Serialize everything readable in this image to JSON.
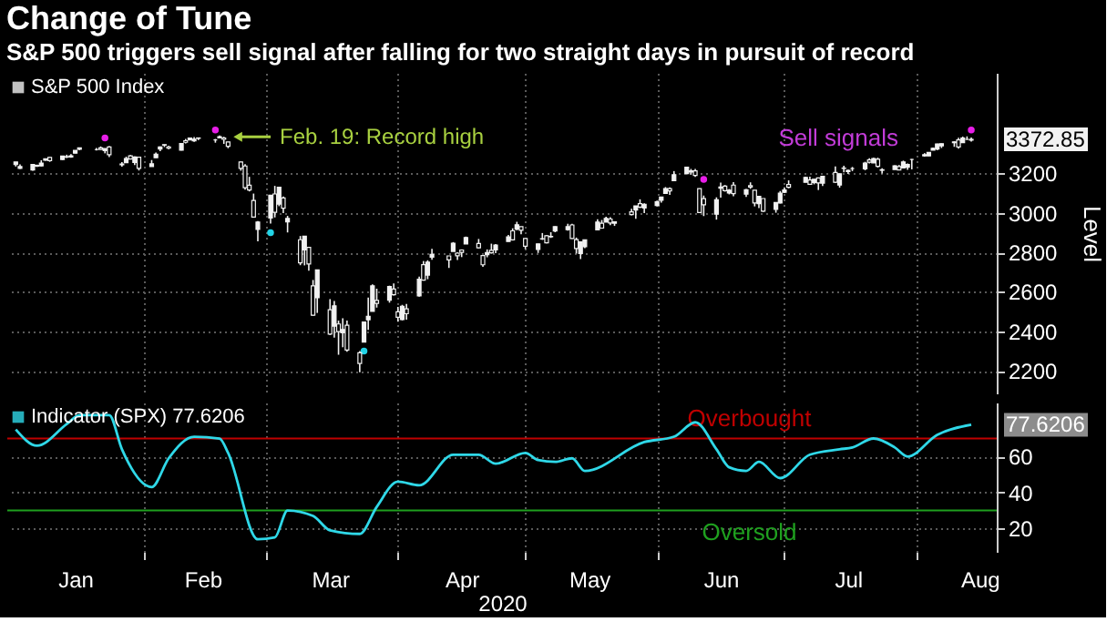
{
  "chart_data": [
    {
      "type": "candlestick",
      "title": "Change of Tune",
      "subtitle": "S&P 500 triggers sell signal after falling for two straight days in pursuit of record",
      "ylabel": "Level",
      "xlim": [
        "2019-12-31",
        "2020-08-20"
      ],
      "ylim": [
        2085,
        3710
      ],
      "yticks": [
        2200,
        2400,
        2600,
        2800,
        3000,
        3200
      ],
      "xticks": [
        {
          "value": "2020-02-01",
          "label": null
        },
        {
          "value": "2020-03-01",
          "label": null
        },
        {
          "value": "2020-04-01",
          "label": null
        },
        {
          "value": "2020-05-01",
          "label": null
        },
        {
          "value": "2020-06-01",
          "label": null
        },
        {
          "value": "2020-07-01",
          "label": null
        },
        {
          "value": "2020-08-01",
          "label": null
        }
      ],
      "tick_labels": "y",
      "grid": true,
      "legend": "top left",
      "series": [
        {
          "name": "S&P 500 Index",
          "type": "candlestick",
          "color": "#f2f2f2",
          "x": [
            "2020-01-02",
            "2020-01-03",
            "2020-01-06",
            "2020-01-07",
            "2020-01-08",
            "2020-01-09",
            "2020-01-10",
            "2020-01-13",
            "2020-01-14",
            "2020-01-15",
            "2020-01-16",
            "2020-01-17",
            "2020-01-21",
            "2020-01-22",
            "2020-01-23",
            "2020-01-24",
            "2020-01-27",
            "2020-01-28",
            "2020-01-29",
            "2020-01-30",
            "2020-01-31",
            "2020-02-03",
            "2020-02-04",
            "2020-02-05",
            "2020-02-06",
            "2020-02-07",
            "2020-02-10",
            "2020-02-11",
            "2020-02-12",
            "2020-02-13",
            "2020-02-14",
            "2020-02-18",
            "2020-02-19",
            "2020-02-20",
            "2020-02-21",
            "2020-02-24",
            "2020-02-25",
            "2020-02-26",
            "2020-02-27",
            "2020-02-28",
            "2020-03-02",
            "2020-03-03",
            "2020-03-04",
            "2020-03-05",
            "2020-03-06",
            "2020-03-09",
            "2020-03-10",
            "2020-03-11",
            "2020-03-12",
            "2020-03-13",
            "2020-03-16",
            "2020-03-17",
            "2020-03-18",
            "2020-03-19",
            "2020-03-20",
            "2020-03-23",
            "2020-03-24",
            "2020-03-25",
            "2020-03-26",
            "2020-03-27",
            "2020-03-30",
            "2020-03-31",
            "2020-04-01",
            "2020-04-02",
            "2020-04-03",
            "2020-04-06",
            "2020-04-07",
            "2020-04-08",
            "2020-04-09",
            "2020-04-13",
            "2020-04-14",
            "2020-04-15",
            "2020-04-16",
            "2020-04-17",
            "2020-04-20",
            "2020-04-21",
            "2020-04-22",
            "2020-04-23",
            "2020-04-24",
            "2020-04-27",
            "2020-04-28",
            "2020-04-29",
            "2020-04-30",
            "2020-05-01",
            "2020-05-04",
            "2020-05-05",
            "2020-05-06",
            "2020-05-07",
            "2020-05-08",
            "2020-05-11",
            "2020-05-12",
            "2020-05-13",
            "2020-05-14",
            "2020-05-15",
            "2020-05-18",
            "2020-05-19",
            "2020-05-20",
            "2020-05-21",
            "2020-05-22",
            "2020-05-26",
            "2020-05-27",
            "2020-05-28",
            "2020-05-29",
            "2020-06-01",
            "2020-06-02",
            "2020-06-03",
            "2020-06-04",
            "2020-06-05",
            "2020-06-08",
            "2020-06-09",
            "2020-06-10",
            "2020-06-11",
            "2020-06-12",
            "2020-06-15",
            "2020-06-16",
            "2020-06-17",
            "2020-06-18",
            "2020-06-19",
            "2020-06-22",
            "2020-06-23",
            "2020-06-24",
            "2020-06-25",
            "2020-06-26",
            "2020-06-29",
            "2020-06-30",
            "2020-07-01",
            "2020-07-02",
            "2020-07-06",
            "2020-07-07",
            "2020-07-08",
            "2020-07-09",
            "2020-07-10",
            "2020-07-13",
            "2020-07-14",
            "2020-07-15",
            "2020-07-16",
            "2020-07-17",
            "2020-07-20",
            "2020-07-21",
            "2020-07-22",
            "2020-07-23",
            "2020-07-24",
            "2020-07-27",
            "2020-07-28",
            "2020-07-29",
            "2020-07-30",
            "2020-07-31",
            "2020-08-03",
            "2020-08-04",
            "2020-08-05",
            "2020-08-06",
            "2020-08-07",
            "2020-08-10",
            "2020-08-11",
            "2020-08-12",
            "2020-08-13",
            "2020-08-14"
          ],
          "value_labels": [
            null,
            null,
            null,
            null,
            null,
            null,
            null,
            null,
            null,
            null,
            null,
            null,
            null,
            null,
            null,
            null,
            null,
            null,
            null,
            null,
            null,
            null,
            null,
            null,
            null,
            null,
            null,
            null,
            null,
            null,
            null,
            null,
            null,
            null,
            null,
            null,
            null,
            null,
            null,
            null,
            null,
            null,
            null,
            null,
            null,
            null,
            null,
            null,
            null,
            null,
            null,
            null,
            null,
            null,
            null,
            null,
            null,
            null,
            null,
            null,
            null,
            null,
            null,
            null,
            null,
            null,
            null,
            null,
            null,
            null,
            null,
            null,
            null,
            null,
            null,
            null,
            null,
            null,
            null,
            null,
            null,
            null,
            null,
            null,
            null,
            null,
            null,
            null,
            null,
            null,
            null,
            null,
            null,
            null,
            null,
            null,
            null,
            null,
            null,
            null,
            null,
            null,
            null,
            null,
            null,
            null,
            null,
            null,
            null,
            null,
            null,
            null,
            null,
            null,
            null,
            null,
            null,
            null,
            null,
            null,
            null,
            null,
            null,
            null,
            null,
            null,
            null,
            null,
            null,
            null,
            null,
            null,
            null,
            null,
            null,
            null,
            null,
            null,
            null,
            null,
            null,
            null,
            null,
            null,
            null,
            null,
            null,
            null,
            null,
            null,
            null,
            null,
            null,
            null,
            null,
            null,
            "3372.85"
          ],
          "ohlc": [
            [
              3245,
              3258,
              3235,
              3258
            ],
            [
              3226,
              3246,
              3223,
              3235
            ],
            [
              3218,
              3247,
              3214,
              3246
            ],
            [
              3241,
              3245,
              3233,
              3237
            ],
            [
              3238,
              3267,
              3236,
              3253
            ],
            [
              3267,
              3275,
              3264,
              3275
            ],
            [
              3281,
              3283,
              3259,
              3265
            ],
            [
              3271,
              3288,
              3268,
              3288
            ],
            [
              3285,
              3295,
              3278,
              3283
            ],
            [
              3283,
              3298,
              3280,
              3289
            ],
            [
              3303,
              3317,
              3302,
              3317
            ],
            [
              3323,
              3330,
              3318,
              3330
            ],
            [
              3321,
              3329,
              3316,
              3321
            ],
            [
              3330,
              3337,
              3321,
              3322
            ],
            [
              3316,
              3326,
              3302,
              3326
            ],
            [
              3334,
              3338,
              3283,
              3295
            ],
            [
              3248,
              3258,
              3235,
              3244
            ],
            [
              3255,
              3285,
              3253,
              3276
            ],
            [
              3289,
              3293,
              3272,
              3273
            ],
            [
              3256,
              3286,
              3243,
              3284
            ],
            [
              3282,
              3282,
              3215,
              3226
            ],
            [
              3235,
              3268,
              3235,
              3249
            ],
            [
              3280,
              3306,
              3280,
              3298
            ],
            [
              3324,
              3337,
              3313,
              3335
            ],
            [
              3344,
              3347,
              3334,
              3346
            ],
            [
              3335,
              3341,
              3322,
              3328
            ],
            [
              3318,
              3352,
              3317,
              3352
            ],
            [
              3366,
              3375,
              3352,
              3358
            ],
            [
              3370,
              3381,
              3369,
              3379
            ],
            [
              3365,
              3385,
              3360,
              3374
            ],
            [
              3378,
              3381,
              3369,
              3380
            ],
            [
              3370,
              3375,
              3356,
              3370
            ],
            [
              3380,
              3393,
              3378,
              3386
            ],
            [
              3380,
              3386,
              3350,
              3373
            ],
            [
              3360,
              3360,
              3328,
              3338
            ],
            [
              3258,
              3260,
              3214,
              3226
            ],
            [
              3238,
              3247,
              3118,
              3128
            ],
            [
              3140,
              3183,
              3109,
              3116
            ],
            [
              3063,
              3098,
              2977,
              2979
            ],
            [
              2916,
              2959,
              2856,
              2954
            ],
            [
              2974,
              3090,
              2946,
              3090
            ],
            [
              3096,
              3137,
              2977,
              3003
            ],
            [
              3045,
              3130,
              3034,
              3130
            ],
            [
              3076,
              3083,
              2999,
              3024
            ],
            [
              2954,
              2985,
              2901,
              2972
            ],
            [
              2864,
              2883,
              2735,
              2747
            ],
            [
              2813,
              2882,
              2734,
              2882
            ],
            [
              2825,
              2825,
              2707,
              2741
            ],
            [
              2630,
              2660,
              2478,
              2481
            ],
            [
              2570,
              2711,
              2493,
              2711
            ],
            [
              2509,
              2563,
              2381,
              2386
            ],
            [
              2426,
              2553,
              2368,
              2529
            ],
            [
              2437,
              2454,
              2281,
              2398
            ],
            [
              2393,
              2466,
              2319,
              2409
            ],
            [
              2431,
              2454,
              2296,
              2305
            ],
            [
              2291,
              2300,
              2192,
              2237
            ],
            [
              2345,
              2449,
              2345,
              2447
            ],
            [
              2458,
              2571,
              2407,
              2476
            ],
            [
              2501,
              2638,
              2501,
              2630
            ],
            [
              2556,
              2616,
              2520,
              2541
            ],
            [
              2558,
              2631,
              2545,
              2627
            ],
            [
              2614,
              2642,
              2581,
              2585
            ],
            [
              2499,
              2523,
              2448,
              2471
            ],
            [
              2459,
              2534,
              2455,
              2527
            ],
            [
              2514,
              2538,
              2459,
              2489
            ],
            [
              2579,
              2677,
              2575,
              2664
            ],
            [
              2738,
              2756,
              2657,
              2659
            ],
            [
              2685,
              2760,
              2664,
              2750
            ],
            [
              2776,
              2818,
              2762,
              2790
            ],
            [
              2782,
              2782,
              2721,
              2762
            ],
            [
              2805,
              2852,
              2805,
              2846
            ],
            [
              2796,
              2801,
              2761,
              2783
            ],
            [
              2812,
              2815,
              2776,
              2800
            ],
            [
              2843,
              2880,
              2843,
              2875
            ],
            [
              2845,
              2868,
              2820,
              2823
            ],
            [
              2784,
              2785,
              2727,
              2737
            ],
            [
              2788,
              2815,
              2775,
              2799
            ],
            [
              2810,
              2844,
              2794,
              2798
            ],
            [
              2813,
              2842,
              2796,
              2837
            ],
            [
              2855,
              2888,
              2855,
              2878
            ],
            [
              2909,
              2922,
              2860,
              2863
            ],
            [
              2918,
              2955,
              2912,
              2940
            ],
            [
              2930,
              2930,
              2892,
              2912
            ],
            [
              2870,
              2870,
              2817,
              2831
            ],
            [
              2815,
              2844,
              2797,
              2843
            ],
            [
              2869,
              2898,
              2863,
              2868
            ],
            [
              2884,
              2887,
              2845,
              2848
            ],
            [
              2879,
              2902,
              2873,
              2881
            ],
            [
              2908,
              2932,
              2902,
              2930
            ],
            [
              2915,
              2945,
              2910,
              2930
            ],
            [
              2939,
              2945,
              2869,
              2870
            ],
            [
              2865,
              2875,
              2794,
              2820
            ],
            [
              2794,
              2853,
              2766,
              2853
            ],
            [
              2829,
              2865,
              2821,
              2864
            ],
            [
              2914,
              2968,
              2914,
              2954
            ],
            [
              2948,
              2964,
              2922,
              2923
            ],
            [
              2953,
              2981,
              2953,
              2972
            ],
            [
              2969,
              2978,
              2938,
              2949
            ],
            [
              2948,
              2957,
              2934,
              2955
            ],
            [
              3005,
              3021,
              2988,
              2992
            ],
            [
              3015,
              3036,
              2970,
              3036
            ],
            [
              3047,
              3069,
              3024,
              3030
            ],
            [
              3025,
              3049,
              2999,
              3044
            ],
            [
              3038,
              3063,
              3032,
              3056
            ],
            [
              3064,
              3081,
              3052,
              3081
            ],
            [
              3099,
              3131,
              3097,
              3123
            ],
            [
              3123,
              3129,
              3091,
              3112
            ],
            [
              3163,
              3212,
              3163,
              3194
            ],
            [
              3199,
              3233,
              3196,
              3232
            ],
            [
              3213,
              3223,
              3194,
              3207
            ],
            [
              3213,
              3223,
              3182,
              3190
            ],
            [
              3123,
              3124,
              2999,
              3002
            ],
            [
              3072,
              3088,
              2984,
              3041
            ],
            [
              2994,
              3079,
              2966,
              3067
            ],
            [
              3131,
              3154,
              3077,
              3125
            ],
            [
              3136,
              3141,
              3108,
              3113
            ],
            [
              3101,
              3121,
              3094,
              3115
            ],
            [
              3141,
              3156,
              3084,
              3098
            ],
            [
              3095,
              3121,
              3081,
              3118
            ],
            [
              3138,
              3155,
              3122,
              3131
            ],
            [
              3115,
              3115,
              3033,
              3050
            ],
            [
              3047,
              3086,
              3025,
              3084
            ],
            [
              3073,
              3073,
              3005,
              3009
            ],
            [
              3018,
              3054,
              3001,
              3053
            ],
            [
              3050,
              3111,
              3048,
              3100
            ],
            [
              3105,
              3129,
              3101,
              3116
            ],
            [
              3144,
              3165,
              3125,
              3130
            ],
            [
              3155,
              3183,
              3155,
              3180
            ],
            [
              3167,
              3184,
              3142,
              3145
            ],
            [
              3154,
              3172,
              3145,
              3170
            ],
            [
              3177,
              3179,
              3116,
              3152
            ],
            [
              3151,
              3187,
              3136,
              3185
            ],
            [
              3205,
              3236,
              3151,
              3155
            ],
            [
              3141,
              3200,
              3128,
              3198
            ],
            [
              3226,
              3239,
              3206,
              3227
            ],
            [
              3209,
              3220,
              3198,
              3216
            ],
            [
              3225,
              3233,
              3212,
              3225
            ],
            [
              3224,
              3259,
              3216,
              3252
            ],
            [
              3269,
              3277,
              3251,
              3257
            ],
            [
              3254,
              3279,
              3253,
              3276
            ],
            [
              3272,
              3280,
              3230,
              3236
            ],
            [
              3219,
              3227,
              3200,
              3216
            ],
            [
              3220,
              3241,
              3220,
              3239
            ],
            [
              3235,
              3243,
              3216,
              3218
            ],
            [
              3228,
              3265,
              3228,
              3258
            ],
            [
              3232,
              3251,
              3218,
              3246
            ],
            [
              3271,
              3273,
              3221,
              3271
            ],
            [
              3289,
              3303,
              3285,
              3295
            ],
            [
              3289,
              3307,
              3288,
              3307
            ],
            [
              3318,
              3331,
              3318,
              3328
            ],
            [
              3324,
              3351,
              3318,
              3349
            ],
            [
              3340,
              3352,
              3329,
              3351
            ],
            [
              3356,
              3363,
              3335,
              3360
            ],
            [
              3370,
              3381,
              3326,
              3334
            ],
            [
              3356,
              3387,
              3355,
              3380
            ],
            [
              3373,
              3388,
              3370,
              3373
            ],
            [
              3369,
              3382,
              3362,
              3372.85
            ]
          ]
        },
        {
          "type": "scatter",
          "color": "#e81ee8",
          "x": [
            "2020-01-23",
            "2020-02-18",
            "2020-06-12",
            "2020-08-14"
          ],
          "values": [
            3380,
            3420,
            3170,
            3420
          ]
        },
        {
          "type": "scatter",
          "color": "#22d3e6",
          "x": [
            "2020-03-02",
            "2020-03-24"
          ],
          "values": [
            2900,
            2300
          ]
        }
      ],
      "annotations": [
        {
          "text": "Feb. 19: Record high",
          "x": "2020-02-19",
          "y": 3386
        },
        "Sell signals"
      ]
    },
    {
      "type": "line",
      "xlabel": "2020",
      "xlim": [
        "2019-12-31",
        "2020-08-20"
      ],
      "ylim": [
        7,
        90
      ],
      "yticks": [
        20,
        40,
        60
      ],
      "grid": true,
      "legend": "top left",
      "xticks": [
        {
          "value": "2020-01-16",
          "label": "Jan"
        },
        {
          "value": "2020-02-01",
          "label": null
        },
        {
          "value": "2020-02-15",
          "label": "Feb"
        },
        {
          "value": "2020-03-01",
          "label": null
        },
        {
          "value": "2020-03-16",
          "label": "Mar"
        },
        {
          "value": "2020-04-01",
          "label": null
        },
        {
          "value": "2020-04-16",
          "label": "Apr"
        },
        {
          "value": "2020-05-01",
          "label": null
        },
        {
          "value": "2020-05-16",
          "label": "May"
        },
        {
          "value": "2020-06-01",
          "label": null
        },
        {
          "value": "2020-06-16",
          "label": "Jun"
        },
        {
          "value": "2020-07-01",
          "label": null
        },
        {
          "value": "2020-07-16",
          "label": "Jul"
        },
        {
          "value": "2020-08-01",
          "label": null
        },
        {
          "value": "2020-08-16",
          "label": "Aug"
        }
      ],
      "series": [
        {
          "name": "Indicator (SPX) 77.6206",
          "color": "#2fd8e8",
          "x": [
            "2020-01-02",
            "2020-01-07",
            "2020-01-14",
            "2020-01-17",
            "2020-01-24",
            "2020-01-27",
            "2020-02-03",
            "2020-02-07",
            "2020-02-13",
            "2020-02-19",
            "2020-02-21",
            "2020-02-28",
            "2020-03-03",
            "2020-03-06",
            "2020-03-12",
            "2020-03-16",
            "2020-03-23",
            "2020-03-27",
            "2020-04-01",
            "2020-04-06",
            "2020-04-14",
            "2020-04-20",
            "2020-04-24",
            "2020-05-01",
            "2020-05-04",
            "2020-05-08",
            "2020-05-12",
            "2020-05-15",
            "2020-05-29",
            "2020-06-05",
            "2020-06-10",
            "2020-06-15",
            "2020-06-18",
            "2020-06-22",
            "2020-06-25",
            "2020-06-30",
            "2020-07-07",
            "2020-07-14",
            "2020-07-17",
            "2020-07-22",
            "2020-07-27",
            "2020-07-30",
            "2020-08-06",
            "2020-08-14"
          ],
          "values": [
            75,
            66,
            78,
            83,
            83,
            64,
            43,
            59,
            71,
            70,
            62,
            14,
            15,
            30,
            27,
            19,
            17,
            32,
            46,
            44,
            61,
            61,
            56,
            62,
            58,
            57,
            59,
            52,
            68,
            71,
            79,
            64,
            54,
            52,
            57,
            48,
            61,
            64,
            65,
            70,
            65,
            60,
            72,
            77.6206
          ],
          "value_labels": [
            null,
            null,
            null,
            null,
            null,
            null,
            null,
            null,
            null,
            null,
            null,
            null,
            null,
            null,
            null,
            null,
            null,
            null,
            null,
            null,
            null,
            null,
            null,
            null,
            null,
            null,
            null,
            null,
            null,
            null,
            null,
            null,
            null,
            null,
            null,
            null,
            null,
            null,
            null,
            null,
            null,
            null,
            null,
            "77.6206"
          ]
        }
      ],
      "ref_lines": [
        {
          "axis": "y",
          "value": 70,
          "label": "Overbought",
          "color": "#c00000"
        },
        {
          "axis": "y",
          "value": 30,
          "label": "Oversold",
          "color": "#1fa01f"
        }
      ]
    }
  ]
}
